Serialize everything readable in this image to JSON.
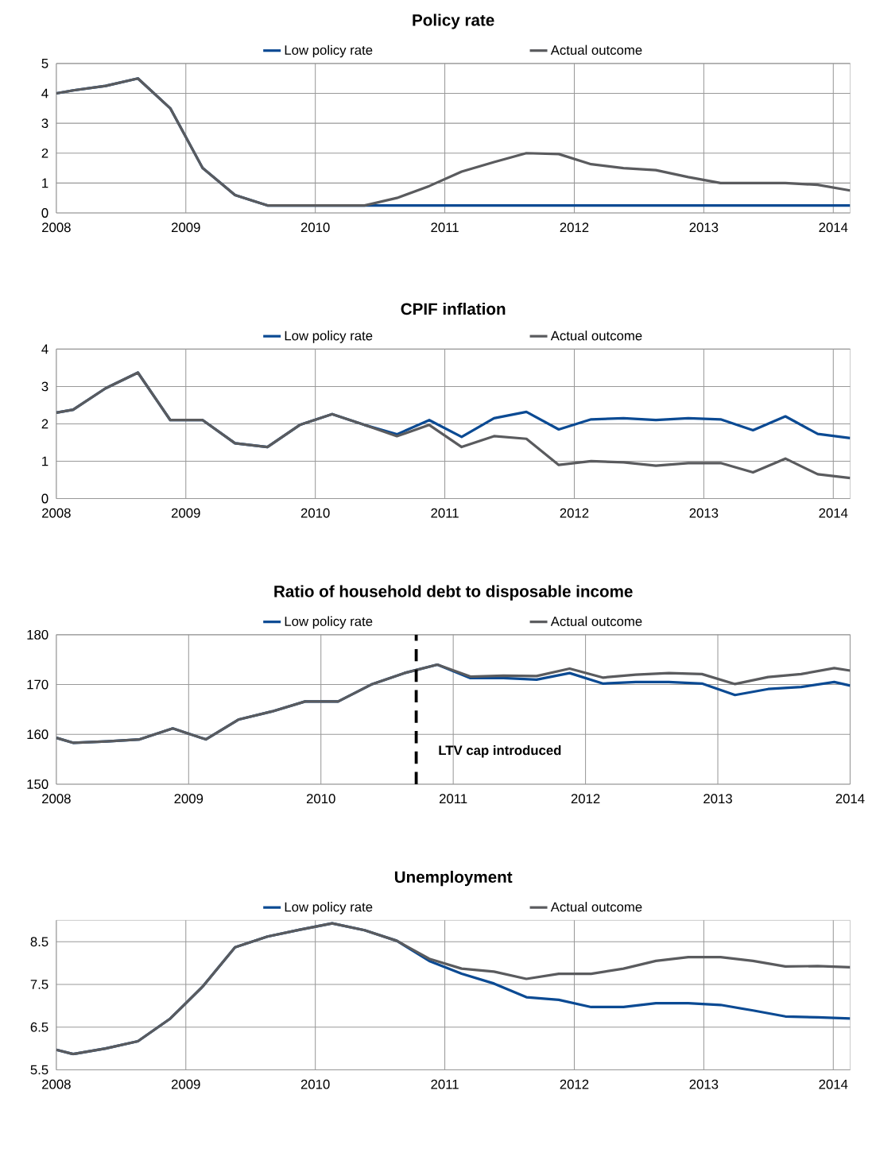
{
  "chart_data": [
    {
      "type": "line",
      "title": "Policy rate",
      "x": [
        2008,
        2008.13,
        2008.38,
        2008.63,
        2008.88,
        2009.13,
        2009.38,
        2009.63,
        2009.88,
        2010.13,
        2010.38,
        2010.63,
        2010.88,
        2011.13,
        2011.38,
        2011.63,
        2011.88,
        2012.13,
        2012.38,
        2012.63,
        2012.88,
        2013.13,
        2013.38,
        2013.63,
        2013.88,
        2014.13
      ],
      "series": [
        {
          "name": "Low policy rate",
          "color": "#0b4a93",
          "values": [
            4.0,
            4.1,
            4.25,
            4.5,
            3.5,
            1.5,
            0.6,
            0.25,
            0.25,
            0.25,
            0.25,
            0.25,
            0.25,
            0.25,
            0.25,
            0.25,
            0.25,
            0.25,
            0.25,
            0.25,
            0.25,
            0.25,
            0.25,
            0.25,
            0.25,
            0.25
          ]
        },
        {
          "name": "Actual outcome",
          "color": "#5a5b5e",
          "values": [
            4.0,
            4.1,
            4.25,
            4.5,
            3.5,
            1.5,
            0.6,
            0.25,
            0.25,
            0.25,
            0.25,
            0.5,
            0.9,
            1.38,
            1.7,
            2.0,
            1.97,
            1.63,
            1.5,
            1.43,
            1.2,
            1.0,
            1.0,
            1.0,
            0.94,
            0.75
          ]
        }
      ],
      "xlim": [
        2008,
        2014.13
      ],
      "ylim": [
        0,
        5
      ],
      "xticks": [
        2008,
        2009,
        2010,
        2011,
        2012,
        2013,
        2014
      ],
      "yticks": [
        0,
        1,
        2,
        3,
        4,
        5
      ],
      "grid": true,
      "legend": "top"
    },
    {
      "type": "line",
      "title": "CPIF inflation",
      "x": [
        2008,
        2008.13,
        2008.38,
        2008.63,
        2008.88,
        2009.13,
        2009.38,
        2009.63,
        2009.88,
        2010.13,
        2010.38,
        2010.63,
        2010.88,
        2011.13,
        2011.38,
        2011.63,
        2011.88,
        2012.13,
        2012.38,
        2012.63,
        2012.88,
        2013.13,
        2013.38,
        2013.63,
        2013.88,
        2014.13
      ],
      "series": [
        {
          "name": "Low policy rate",
          "color": "#0b4a93",
          "values": [
            2.3,
            2.38,
            2.95,
            3.37,
            2.1,
            2.1,
            1.48,
            1.38,
            1.97,
            2.26,
            1.97,
            1.72,
            2.1,
            1.65,
            2.15,
            2.32,
            1.85,
            2.12,
            2.15,
            2.1,
            2.15,
            2.12,
            1.83,
            2.2,
            1.73,
            1.62
          ]
        },
        {
          "name": "Actual outcome",
          "color": "#5a5b5e",
          "values": [
            2.3,
            2.38,
            2.95,
            3.37,
            2.1,
            2.1,
            1.48,
            1.38,
            1.97,
            2.26,
            1.97,
            1.67,
            1.97,
            1.38,
            1.67,
            1.6,
            0.9,
            1.0,
            0.97,
            0.88,
            0.95,
            0.95,
            0.7,
            1.07,
            0.65,
            0.55
          ]
        }
      ],
      "xlim": [
        2008,
        2014.13
      ],
      "ylim": [
        0,
        4
      ],
      "xticks": [
        2008,
        2009,
        2010,
        2011,
        2012,
        2013,
        2014
      ],
      "yticks": [
        0,
        1,
        2,
        3,
        4
      ],
      "grid": true,
      "legend": "top"
    },
    {
      "type": "line",
      "title": "Ratio of household debt to disposable income",
      "x": [
        2008,
        2008.13,
        2008.38,
        2008.63,
        2008.88,
        2009.13,
        2009.38,
        2009.63,
        2009.88,
        2010.13,
        2010.38,
        2010.63,
        2010.88,
        2011.13,
        2011.38,
        2011.63,
        2011.88,
        2012.13,
        2012.38,
        2012.63,
        2012.88,
        2013.13,
        2013.38,
        2013.63,
        2013.88,
        2014.0
      ],
      "series": [
        {
          "name": "Low policy rate",
          "color": "#0b4a93",
          "values": [
            159.3,
            158.3,
            158.6,
            159.0,
            161.2,
            159.0,
            163.0,
            164.6,
            166.6,
            166.6,
            170.0,
            172.3,
            174.0,
            171.3,
            171.3,
            171.0,
            172.3,
            170.2,
            170.5,
            170.5,
            170.2,
            167.9,
            169.1,
            169.5,
            170.5,
            169.8
          ]
        },
        {
          "name": "Actual outcome",
          "color": "#5a5b5e",
          "values": [
            159.3,
            158.3,
            158.6,
            159.0,
            161.2,
            159.0,
            163.0,
            164.6,
            166.6,
            166.6,
            170.0,
            172.3,
            174.0,
            171.6,
            171.8,
            171.7,
            173.2,
            171.4,
            172.0,
            172.3,
            172.1,
            170.1,
            171.5,
            172.1,
            173.3,
            172.8
          ]
        }
      ],
      "xlim": [
        2008,
        2014
      ],
      "ylim": [
        150,
        180
      ],
      "xticks": [
        2008,
        2009,
        2010,
        2011,
        2012,
        2013,
        2014
      ],
      "yticks": [
        150,
        160,
        170,
        180
      ],
      "grid": true,
      "legend": "top",
      "ref_lines": [
        {
          "axis": "x",
          "value": 2010.72,
          "label": "LTV cap introduced",
          "color": "#000000",
          "line_style": "dashed"
        }
      ]
    },
    {
      "type": "line",
      "title": "Unemployment",
      "x": [
        2008,
        2008.13,
        2008.38,
        2008.63,
        2008.88,
        2009.13,
        2009.38,
        2009.63,
        2009.88,
        2010.13,
        2010.38,
        2010.63,
        2010.88,
        2011.13,
        2011.38,
        2011.63,
        2011.88,
        2012.13,
        2012.38,
        2012.63,
        2012.88,
        2013.13,
        2013.38,
        2013.63,
        2013.88,
        2014.13
      ],
      "series": [
        {
          "name": "Low policy rate",
          "color": "#0b4a93",
          "values": [
            5.97,
            5.87,
            6.0,
            6.17,
            6.7,
            7.45,
            8.37,
            8.62,
            8.78,
            8.93,
            8.77,
            8.52,
            8.05,
            7.75,
            7.52,
            7.2,
            7.14,
            6.97,
            6.97,
            7.06,
            7.06,
            7.02,
            6.89,
            6.75,
            6.73,
            6.7
          ]
        },
        {
          "name": "Actual outcome",
          "color": "#5a5b5e",
          "values": [
            5.97,
            5.87,
            6.0,
            6.17,
            6.7,
            7.45,
            8.37,
            8.62,
            8.78,
            8.93,
            8.77,
            8.52,
            8.1,
            7.87,
            7.8,
            7.63,
            7.75,
            7.75,
            7.87,
            8.05,
            8.14,
            8.14,
            8.05,
            7.92,
            7.93,
            7.9
          ]
        }
      ],
      "xlim": [
        2008,
        2014.13
      ],
      "ylim": [
        5.5,
        9
      ],
      "xticks": [
        2008,
        2009,
        2010,
        2011,
        2012,
        2013,
        2014
      ],
      "yticks": [
        5.5,
        6.5,
        7.5,
        8.5
      ],
      "grid": true,
      "legend": "top"
    }
  ]
}
